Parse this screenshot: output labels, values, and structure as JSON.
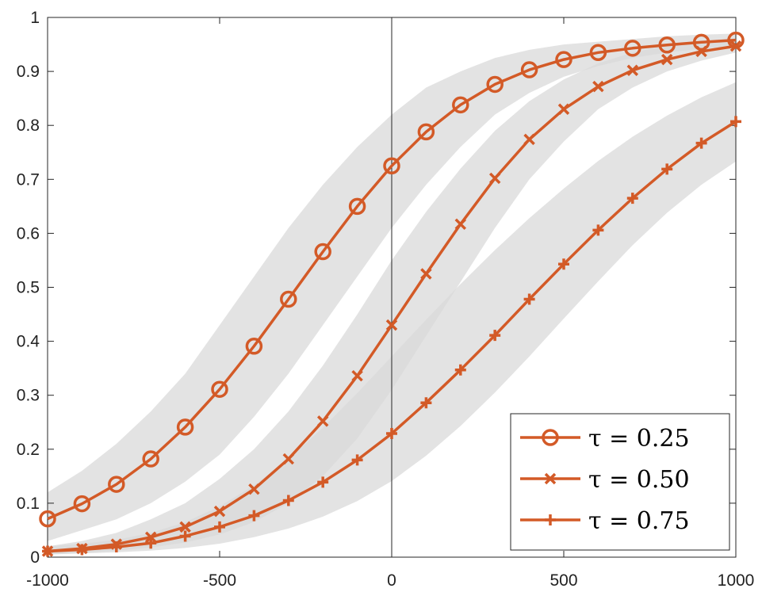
{
  "chart_data": {
    "type": "line",
    "title": "",
    "xlabel": "",
    "ylabel": "",
    "xlim": [
      -1000,
      1000
    ],
    "ylim": [
      0,
      1
    ],
    "x_ticks": [
      -1000,
      -500,
      0,
      500,
      1000
    ],
    "y_ticks": [
      0,
      0.1,
      0.2,
      0.3,
      0.4,
      0.5,
      0.6,
      0.7,
      0.8,
      0.9,
      1
    ],
    "x_tick_labels": [
      "-1000",
      "-500",
      "0",
      "500",
      "1000"
    ],
    "y_tick_labels": [
      "0",
      "0.1",
      "0.2",
      "0.3",
      "0.4",
      "0.5",
      "0.6",
      "0.7",
      "0.8",
      "0.9",
      "1"
    ],
    "grid": false,
    "vertical_reference_line_x": 0,
    "legend_position": "bottom-right",
    "line_color": "#d35a27",
    "band_color": "#d9d9d9",
    "x": [
      -1000,
      -900,
      -800,
      -700,
      -600,
      -500,
      -400,
      -300,
      -200,
      -100,
      0,
      100,
      200,
      300,
      400,
      500,
      600,
      700,
      800,
      900,
      1000
    ],
    "series": [
      {
        "name": "τ = 0.25",
        "marker": "circle",
        "values": [
          0.071,
          0.099,
          0.135,
          0.182,
          0.241,
          0.311,
          0.391,
          0.478,
          0.566,
          0.65,
          0.725,
          0.788,
          0.838,
          0.876,
          0.903,
          0.922,
          0.935,
          0.943,
          0.949,
          0.954,
          0.958
        ],
        "band_lower": [
          0.03,
          0.05,
          0.07,
          0.1,
          0.14,
          0.19,
          0.26,
          0.34,
          0.43,
          0.52,
          0.61,
          0.69,
          0.76,
          0.82,
          0.86,
          0.89,
          0.91,
          0.925,
          0.935,
          0.942,
          0.947
        ],
        "band_upper": [
          0.12,
          0.16,
          0.21,
          0.27,
          0.34,
          0.43,
          0.52,
          0.61,
          0.69,
          0.76,
          0.82,
          0.87,
          0.9,
          0.925,
          0.94,
          0.95,
          0.955,
          0.96,
          0.965,
          0.968,
          0.97
        ]
      },
      {
        "name": "τ = 0.50",
        "marker": "x",
        "values": [
          0.011,
          0.016,
          0.024,
          0.037,
          0.056,
          0.085,
          0.126,
          0.182,
          0.252,
          0.336,
          0.43,
          0.525,
          0.617,
          0.702,
          0.774,
          0.83,
          0.872,
          0.902,
          0.922,
          0.937,
          0.947
        ],
        "band_lower": [
          0.005,
          0.008,
          0.012,
          0.018,
          0.027,
          0.042,
          0.065,
          0.1,
          0.15,
          0.22,
          0.31,
          0.41,
          0.51,
          0.61,
          0.7,
          0.77,
          0.83,
          0.87,
          0.9,
          0.92,
          0.935
        ],
        "band_upper": [
          0.02,
          0.03,
          0.045,
          0.07,
          0.1,
          0.145,
          0.2,
          0.27,
          0.355,
          0.45,
          0.55,
          0.64,
          0.72,
          0.79,
          0.845,
          0.885,
          0.915,
          0.935,
          0.948,
          0.956,
          0.962
        ]
      },
      {
        "name": "τ = 0.75",
        "marker": "plus",
        "values": [
          0.011,
          0.014,
          0.019,
          0.026,
          0.039,
          0.056,
          0.077,
          0.105,
          0.139,
          0.18,
          0.229,
          0.286,
          0.347,
          0.411,
          0.478,
          0.543,
          0.606,
          0.665,
          0.719,
          0.767,
          0.807
        ],
        "band_lower": [
          0.005,
          0.007,
          0.009,
          0.012,
          0.017,
          0.025,
          0.037,
          0.053,
          0.075,
          0.104,
          0.141,
          0.188,
          0.243,
          0.305,
          0.372,
          0.442,
          0.511,
          0.578,
          0.638,
          0.69,
          0.733
        ],
        "band_upper": [
          0.02,
          0.025,
          0.032,
          0.045,
          0.065,
          0.094,
          0.133,
          0.182,
          0.24,
          0.304,
          0.372,
          0.44,
          0.506,
          0.569,
          0.628,
          0.683,
          0.734,
          0.779,
          0.818,
          0.852,
          0.88
        ]
      }
    ]
  }
}
